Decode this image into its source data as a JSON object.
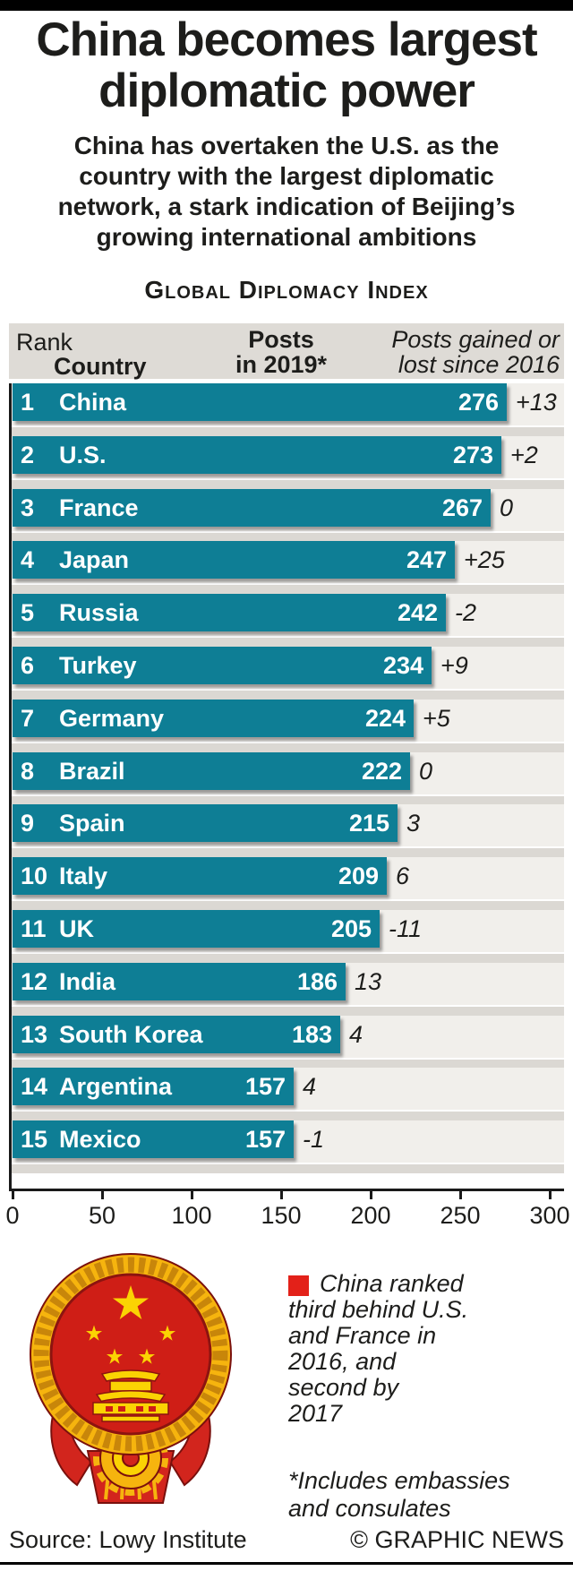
{
  "header": {
    "title": "China becomes largest\ndiplomatic power",
    "subtitle": "China has overtaken the U.S. as the\ncountry with the largest diplomatic\nnetwork, a stark indication of Beijing’s\ngrowing international ambitions",
    "kicker": "Global Diplomacy Index"
  },
  "table_header": {
    "rank": "Rank",
    "country": "Country",
    "posts": "Posts\nin 2019*",
    "change": "Posts gained or\nlost since 2016"
  },
  "chart_data": {
    "type": "bar",
    "orientation": "horizontal",
    "title": "Global Diplomacy Index",
    "xlabel": "Posts in 2019",
    "xlim": [
      0,
      300
    ],
    "x_ticks": [
      0,
      50,
      100,
      150,
      200,
      250,
      300
    ],
    "bar_color": "#0e7e95",
    "categories": [
      "China",
      "U.S.",
      "France",
      "Japan",
      "Russia",
      "Turkey",
      "Germany",
      "Brazil",
      "Spain",
      "Italy",
      "UK",
      "India",
      "South Korea",
      "Argentina",
      "Mexico"
    ],
    "values": [
      276,
      273,
      267,
      247,
      242,
      234,
      224,
      222,
      215,
      209,
      205,
      186,
      183,
      157,
      157
    ],
    "rows": [
      {
        "rank": "1",
        "country": "China",
        "posts": 276,
        "change": "+13"
      },
      {
        "rank": "2",
        "country": "U.S.",
        "posts": 273,
        "change": "+2"
      },
      {
        "rank": "3",
        "country": "France",
        "posts": 267,
        "change": "0"
      },
      {
        "rank": "4",
        "country": "Japan",
        "posts": 247,
        "change": "+25"
      },
      {
        "rank": "5",
        "country": "Russia",
        "posts": 242,
        "change": "-2"
      },
      {
        "rank": "6",
        "country": "Turkey",
        "posts": 234,
        "change": "+9"
      },
      {
        "rank": "7",
        "country": "Germany",
        "posts": 224,
        "change": "+5"
      },
      {
        "rank": "8",
        "country": "Brazil",
        "posts": 222,
        "change": "0"
      },
      {
        "rank": "9",
        "country": "Spain",
        "posts": 215,
        "change": "3"
      },
      {
        "rank": "10",
        "country": "Italy",
        "posts": 209,
        "change": "6"
      },
      {
        "rank": "11",
        "country": "UK",
        "posts": 205,
        "change": "-11"
      },
      {
        "rank": "12",
        "country": "India",
        "posts": 186,
        "change": "13"
      },
      {
        "rank": "13",
        "country": "South Korea",
        "posts": 183,
        "change": "4"
      },
      {
        "rank": "14",
        "country": "Argentina",
        "posts": 157,
        "change": "4"
      },
      {
        "rank": "15",
        "country": "Mexico",
        "posts": 157,
        "change": "-1"
      }
    ]
  },
  "legend": {
    "marker_color": "#e32119",
    "text": "China ranked\nthird behind U.S.\nand France in\n2016, and\nsecond by\n2017"
  },
  "footnote": "*Includes embassies\nand consulates",
  "footer": {
    "source": "Source: Lowy Institute",
    "credit": "© GRAPHIC NEWS"
  },
  "colors": {
    "bar_teal": "#0e7e95",
    "track_cream": "#f1efeb",
    "stripe_gray": "#dbd8d3",
    "header_band_gray": "#dedbd6",
    "accent_red": "#e32119",
    "text_black": "#1d1d1b"
  }
}
